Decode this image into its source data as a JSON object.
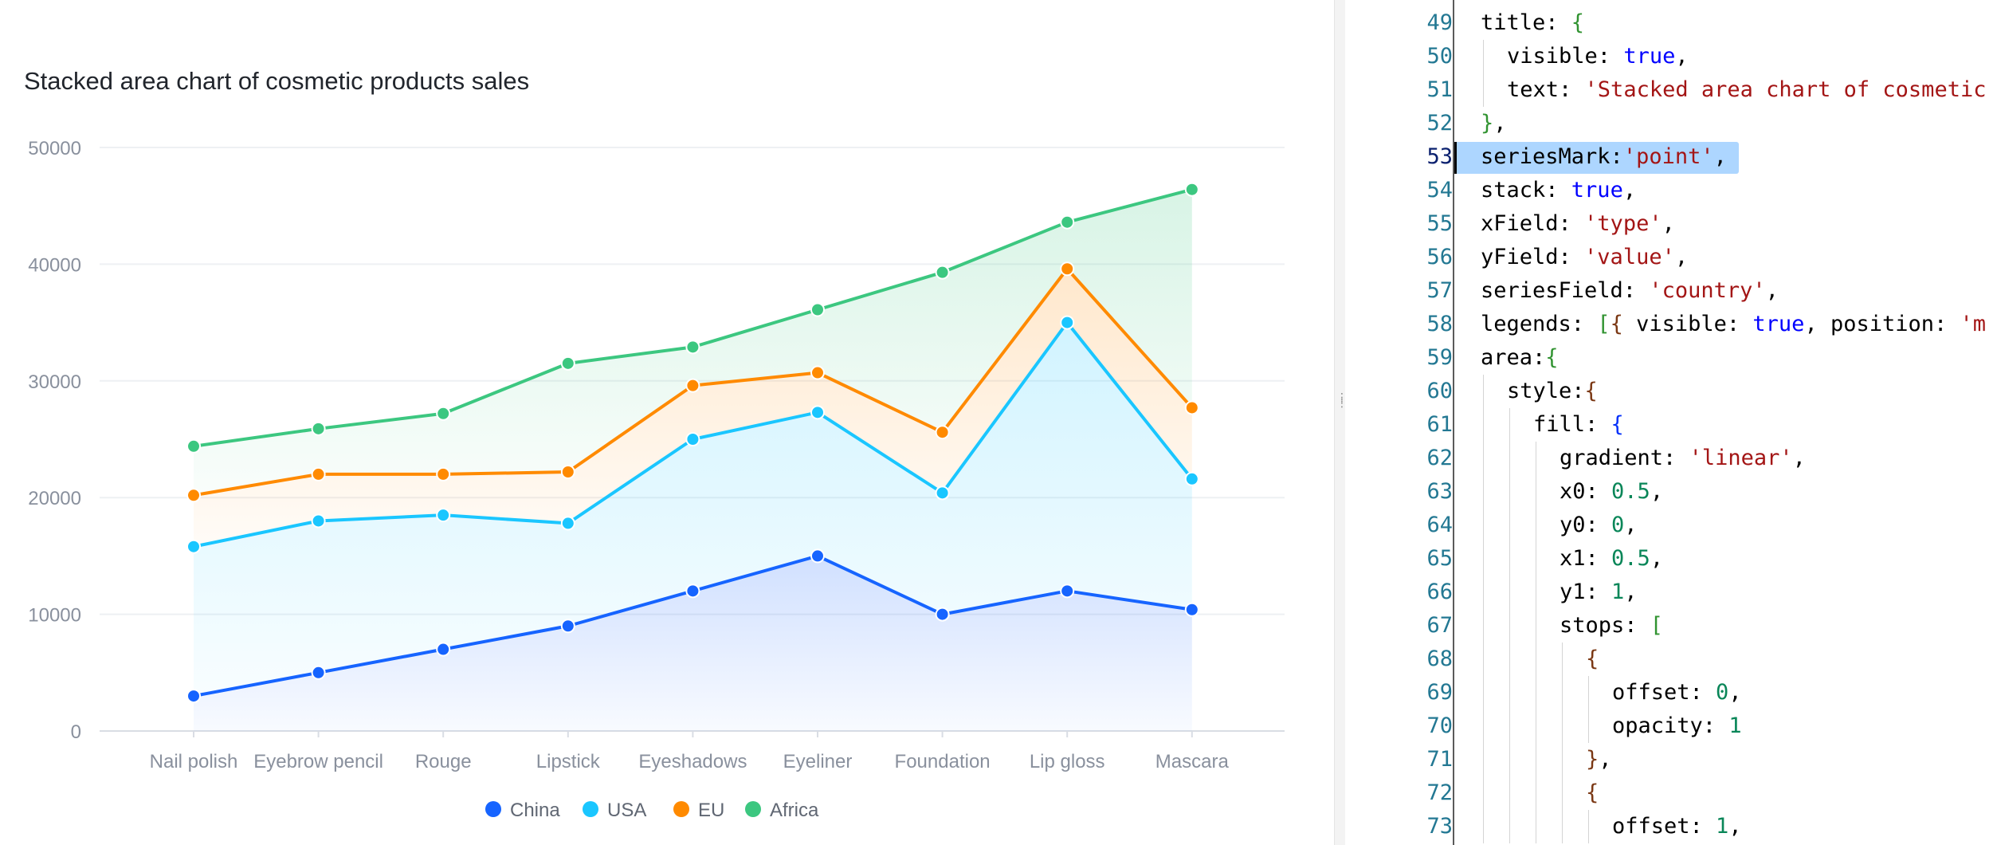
{
  "chart_data": {
    "type": "area",
    "stacked": true,
    "title": "Stacked area chart of cosmetic products sales",
    "categories": [
      "Nail polish",
      "Eyebrow pencil",
      "Rouge",
      "Lipstick",
      "Eyeshadows",
      "Eyeliner",
      "Foundation",
      "Lip gloss",
      "Mascara"
    ],
    "series": [
      {
        "name": "China",
        "color": "#1664ff",
        "values": [
          3000,
          5000,
          7000,
          9000,
          12000,
          15000,
          10000,
          12000,
          10400
        ]
      },
      {
        "name": "USA",
        "color": "#1ac6ff",
        "values": [
          12800,
          13000,
          11500,
          8800,
          13000,
          12300,
          10400,
          23000,
          11200
        ]
      },
      {
        "name": "EU",
        "color": "#ff8a00",
        "values": [
          4400,
          4000,
          3500,
          4400,
          4600,
          3400,
          5200,
          4600,
          6100
        ]
      },
      {
        "name": "Africa",
        "color": "#3cc780",
        "values": [
          4200,
          3900,
          5200,
          9300,
          3300,
          5400,
          13700,
          4000,
          18700
        ]
      }
    ],
    "stacked_totals": {
      "China": [
        3000,
        5000,
        7000,
        9000,
        12000,
        15000,
        10000,
        12000,
        10400
      ],
      "USA": [
        15800,
        18000,
        18500,
        17800,
        25000,
        27300,
        20400,
        35000,
        21600
      ],
      "EU": [
        20200,
        22000,
        22000,
        22200,
        29600,
        30700,
        25600,
        39600,
        27700
      ],
      "Africa": [
        24400,
        25900,
        27200,
        31500,
        32900,
        36100,
        39300,
        43600,
        46400
      ]
    },
    "y_ticks": [
      "50000",
      "40000",
      "30000",
      "20000",
      "10000",
      "0"
    ],
    "ylim": [
      0,
      50000
    ],
    "grid": true,
    "legend_position": "bottom",
    "series_mark": "point"
  },
  "editor": {
    "lines": [
      {
        "no": "49",
        "indent": 1,
        "tokens": [
          [
            "title: ",
            "key"
          ],
          [
            "{",
            "br1"
          ]
        ]
      },
      {
        "no": "50",
        "indent": 2,
        "tokens": [
          [
            "visible: ",
            "key"
          ],
          [
            "true",
            "bool"
          ],
          [
            ",",
            "key"
          ]
        ]
      },
      {
        "no": "51",
        "indent": 2,
        "tokens": [
          [
            "text: ",
            "key"
          ],
          [
            "'Stacked area chart of cosmetic",
            "str"
          ]
        ]
      },
      {
        "no": "52",
        "indent": 1,
        "tokens": [
          [
            "}",
            "br1"
          ],
          [
            ",",
            "key"
          ]
        ]
      },
      {
        "no": "53",
        "indent": 1,
        "tokens": [
          [
            "seriesMark:",
            "key"
          ],
          [
            "'point'",
            "str"
          ],
          [
            ",",
            "key"
          ]
        ],
        "active": true
      },
      {
        "no": "54",
        "indent": 1,
        "tokens": [
          [
            "stack: ",
            "key"
          ],
          [
            "true",
            "bool"
          ],
          [
            ",",
            "key"
          ]
        ]
      },
      {
        "no": "55",
        "indent": 1,
        "tokens": [
          [
            "xField: ",
            "key"
          ],
          [
            "'type'",
            "str"
          ],
          [
            ",",
            "key"
          ]
        ]
      },
      {
        "no": "56",
        "indent": 1,
        "tokens": [
          [
            "yField: ",
            "key"
          ],
          [
            "'value'",
            "str"
          ],
          [
            ",",
            "key"
          ]
        ]
      },
      {
        "no": "57",
        "indent": 1,
        "tokens": [
          [
            "seriesField: ",
            "key"
          ],
          [
            "'country'",
            "str"
          ],
          [
            ",",
            "key"
          ]
        ]
      },
      {
        "no": "58",
        "indent": 1,
        "tokens": [
          [
            "legends: ",
            "key"
          ],
          [
            "[",
            "br1"
          ],
          [
            "{",
            "br2"
          ],
          [
            " visible: ",
            "key"
          ],
          [
            "true",
            "bool"
          ],
          [
            ", position: ",
            "key"
          ],
          [
            "'m",
            "str"
          ]
        ]
      },
      {
        "no": "59",
        "indent": 1,
        "tokens": [
          [
            "area:",
            "key"
          ],
          [
            "{",
            "br1"
          ]
        ]
      },
      {
        "no": "60",
        "indent": 2,
        "tokens": [
          [
            "style:",
            "key"
          ],
          [
            "{",
            "br2"
          ]
        ]
      },
      {
        "no": "61",
        "indent": 3,
        "tokens": [
          [
            "fill: ",
            "key"
          ],
          [
            "{",
            "br3"
          ]
        ]
      },
      {
        "no": "62",
        "indent": 4,
        "tokens": [
          [
            "gradient: ",
            "key"
          ],
          [
            "'linear'",
            "str"
          ],
          [
            ",",
            "key"
          ]
        ]
      },
      {
        "no": "63",
        "indent": 4,
        "tokens": [
          [
            "x0: ",
            "key"
          ],
          [
            "0.5",
            "num"
          ],
          [
            ",",
            "key"
          ]
        ]
      },
      {
        "no": "64",
        "indent": 4,
        "tokens": [
          [
            "y0: ",
            "key"
          ],
          [
            "0",
            "num"
          ],
          [
            ",",
            "key"
          ]
        ]
      },
      {
        "no": "65",
        "indent": 4,
        "tokens": [
          [
            "x1: ",
            "key"
          ],
          [
            "0.5",
            "num"
          ],
          [
            ",",
            "key"
          ]
        ]
      },
      {
        "no": "66",
        "indent": 4,
        "tokens": [
          [
            "y1: ",
            "key"
          ],
          [
            "1",
            "num"
          ],
          [
            ",",
            "key"
          ]
        ]
      },
      {
        "no": "67",
        "indent": 4,
        "tokens": [
          [
            "stops: ",
            "key"
          ],
          [
            "[",
            "br1"
          ]
        ]
      },
      {
        "no": "68",
        "indent": 5,
        "tokens": [
          [
            "{",
            "br2"
          ]
        ]
      },
      {
        "no": "69",
        "indent": 6,
        "tokens": [
          [
            "offset: ",
            "key"
          ],
          [
            "0",
            "num"
          ],
          [
            ",",
            "key"
          ]
        ]
      },
      {
        "no": "70",
        "indent": 6,
        "tokens": [
          [
            "opacity: ",
            "key"
          ],
          [
            "1",
            "num"
          ]
        ]
      },
      {
        "no": "71",
        "indent": 5,
        "tokens": [
          [
            "}",
            "br2"
          ],
          [
            ",",
            "key"
          ]
        ]
      },
      {
        "no": "72",
        "indent": 5,
        "tokens": [
          [
            "{",
            "br2"
          ]
        ]
      },
      {
        "no": "73",
        "indent": 6,
        "tokens": [
          [
            "offset: ",
            "key"
          ],
          [
            "1",
            "num"
          ],
          [
            ",",
            "key"
          ]
        ]
      }
    ]
  },
  "splitter": {
    "grip_icon": "grip-dots-icon"
  }
}
